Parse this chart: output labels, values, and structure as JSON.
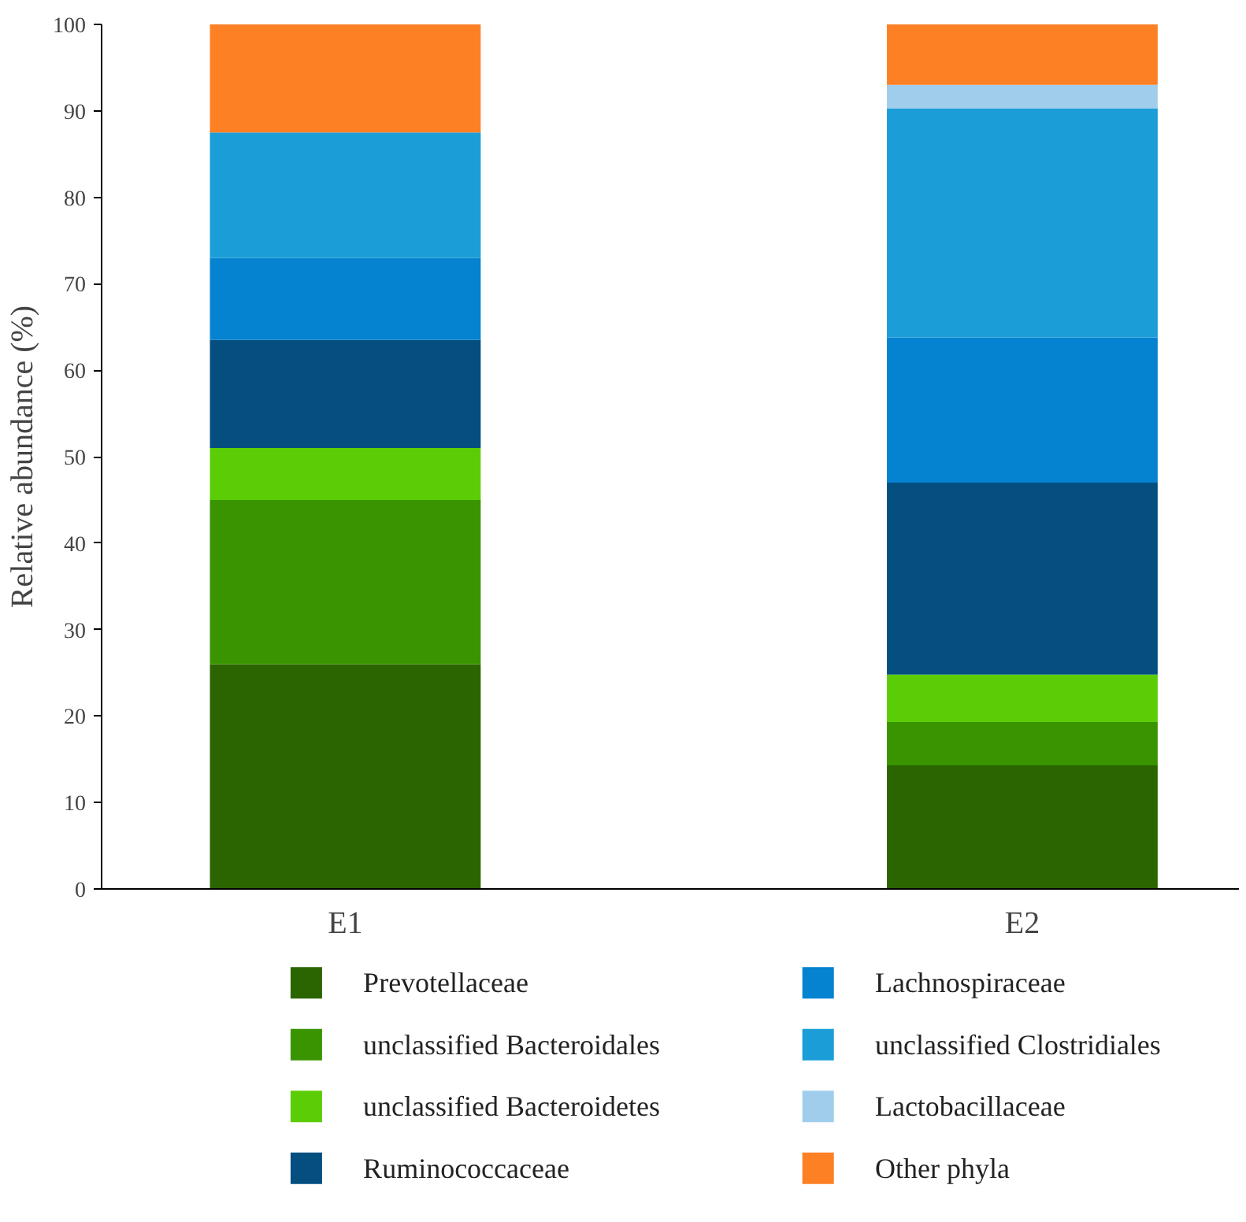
{
  "chart_data": {
    "type": "bar",
    "stacked": true,
    "ylabel": "Relative abundance (%)",
    "categories": [
      "E1",
      "E2"
    ],
    "ylim": [
      0,
      100
    ],
    "yticks": [
      0,
      10,
      20,
      30,
      40,
      50,
      60,
      70,
      80,
      90,
      100
    ],
    "grid": false,
    "legend": "bottom",
    "series": [
      {
        "name": "Prevotellaceae",
        "color": "#2a6500",
        "values": [
          26,
          14.3
        ]
      },
      {
        "name": "unclassified Bacteroidales",
        "color": "#3a9400",
        "values": [
          19,
          5
        ]
      },
      {
        "name": "unclassified Bacteroidetes",
        "color": "#5bcd06",
        "values": [
          6,
          5.5
        ]
      },
      {
        "name": "Ruminococcaceae",
        "color": "#044f80",
        "values": [
          12.5,
          22.2
        ]
      },
      {
        "name": "Lachnospiraceae",
        "color": "#0582d0",
        "values": [
          9.5,
          16.8
        ]
      },
      {
        "name": "unclassified Clostridiales",
        "color": "#1b9ed8",
        "values": [
          14.5,
          26.5
        ]
      },
      {
        "name": "Lactobacillaceae",
        "color": "#a1cdec",
        "values": [
          0,
          2.7
        ]
      },
      {
        "name": "Other phyla",
        "color": "#fd8024",
        "values": [
          12.5,
          7
        ]
      }
    ]
  }
}
